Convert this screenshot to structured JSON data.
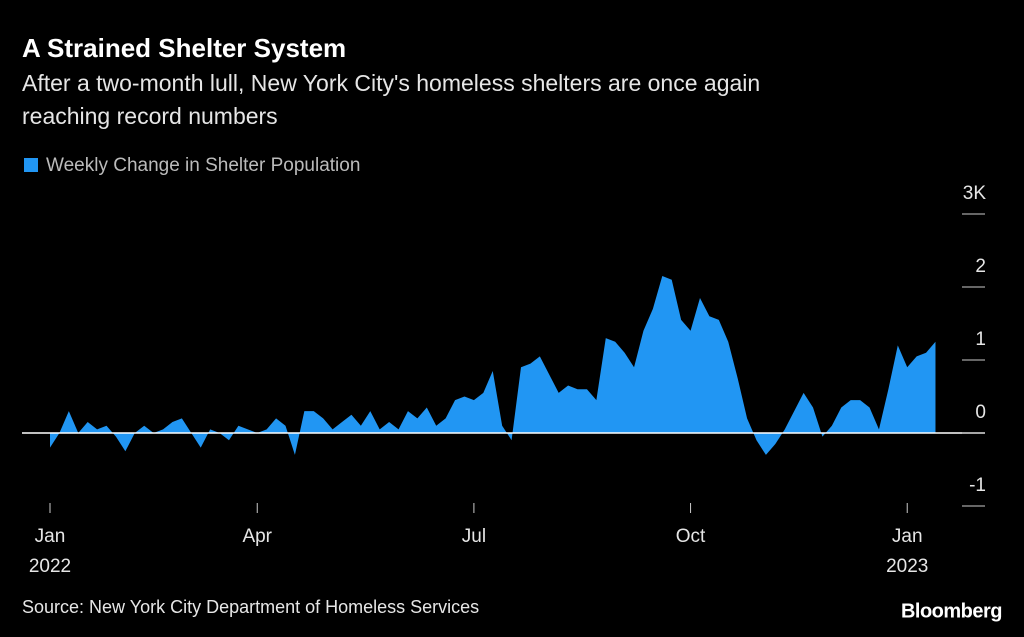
{
  "chart_data": {
    "type": "area",
    "title": "A Strained Shelter System",
    "subtitle": [
      "After a two-month lull, New York City's homeless shelters are once again",
      "reaching record numbers"
    ],
    "source": "Source: New York City Department of Homeless Services",
    "brand": "Bloomberg",
    "categories": [
      "Jan 2022",
      null,
      null,
      null,
      null,
      null,
      null,
      null,
      null,
      null,
      null,
      null,
      null,
      null,
      null,
      null,
      null,
      null,
      null,
      null,
      null,
      null,
      "Apr",
      null,
      null,
      null,
      null,
      null,
      null,
      null,
      null,
      null,
      null,
      null,
      null,
      null,
      null,
      null,
      null,
      null,
      null,
      null,
      null,
      null,
      null,
      "Jul",
      null,
      null,
      null,
      null,
      null,
      null,
      null,
      null,
      null,
      null,
      null,
      null,
      null,
      null,
      null,
      null,
      null,
      null,
      null,
      null,
      null,
      null,
      "Oct",
      null,
      null,
      null,
      null,
      null,
      null,
      null,
      null,
      null,
      null,
      null,
      null,
      null,
      null,
      null,
      null,
      null,
      null,
      null,
      null,
      null,
      null,
      "Jan 2023",
      null,
      null,
      null
    ],
    "series": [
      {
        "name": "Weekly Change in Shelter Population",
        "color": "#2196f3",
        "values": [
          -0.2,
          0.0,
          0.3,
          0.0,
          0.15,
          0.05,
          0.1,
          -0.05,
          -0.25,
          0.0,
          0.1,
          0.0,
          0.05,
          0.15,
          0.2,
          0.0,
          -0.2,
          0.05,
          0.0,
          -0.1,
          0.1,
          0.05,
          0.0,
          0.05,
          0.2,
          0.1,
          -0.3,
          0.3,
          0.3,
          0.2,
          0.05,
          0.15,
          0.25,
          0.1,
          0.3,
          0.05,
          0.15,
          0.05,
          0.3,
          0.2,
          0.35,
          0.1,
          0.2,
          0.45,
          0.5,
          0.45,
          0.55,
          0.85,
          0.1,
          -0.1,
          0.9,
          0.95,
          1.05,
          0.8,
          0.55,
          0.65,
          0.6,
          0.6,
          0.45,
          1.3,
          1.25,
          1.1,
          0.9,
          1.4,
          1.7,
          2.15,
          2.1,
          1.55,
          1.4,
          1.85,
          1.6,
          1.55,
          1.25,
          0.75,
          0.2,
          -0.1,
          -0.3,
          -0.15,
          0.05,
          0.3,
          0.55,
          0.35,
          -0.05,
          0.1,
          0.35,
          0.45,
          0.45,
          0.35,
          0.05,
          0.6,
          1.2,
          0.9,
          1.05,
          1.1,
          1.25
        ]
      }
    ],
    "ylim": [
      -1,
      3
    ],
    "yticks": [
      -1,
      0,
      1,
      2,
      {
        "value": 3,
        "label": "3K"
      }
    ],
    "legend": "top-left"
  }
}
